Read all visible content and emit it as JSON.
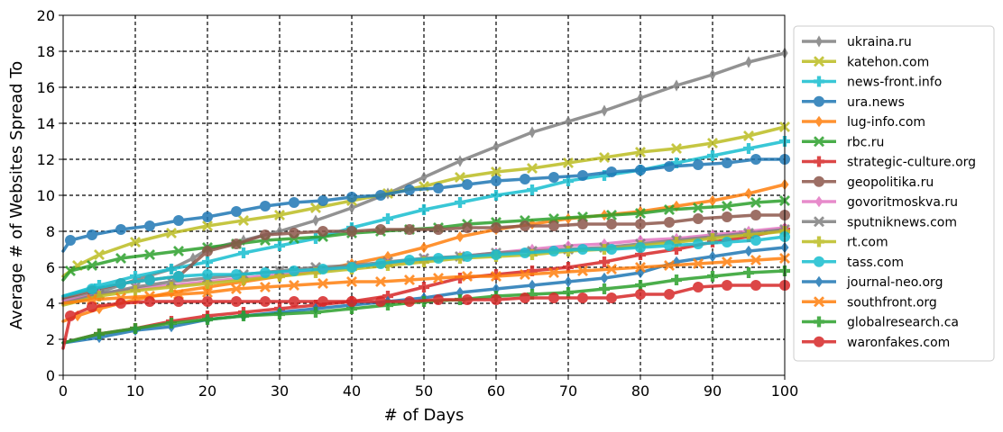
{
  "chart_data": {
    "type": "line",
    "xlabel": "# of Days",
    "ylabel": "Average # of Websites Spread To",
    "xlim": [
      0,
      100
    ],
    "ylim": [
      0,
      20
    ],
    "xticks": [
      0,
      10,
      20,
      30,
      40,
      50,
      60,
      70,
      80,
      90,
      100
    ],
    "yticks": [
      0,
      2,
      4,
      6,
      8,
      10,
      12,
      14,
      16,
      18,
      20
    ],
    "grid": true,
    "legend_position": "right",
    "series": [
      {
        "name": "ukraina.ru",
        "color": "#7f7f7f",
        "marker": "thin_diamond",
        "x": [
          0,
          5,
          10,
          15,
          18,
          20,
          25,
          30,
          35,
          40,
          45,
          50,
          55,
          60,
          65,
          70,
          75,
          80,
          85,
          90,
          95,
          100
        ],
        "y": [
          4.2,
          4.6,
          5.3,
          5.9,
          6.5,
          7.0,
          7.5,
          8.0,
          8.6,
          9.3,
          10.1,
          11.0,
          11.9,
          12.7,
          13.5,
          14.1,
          14.7,
          15.4,
          16.1,
          16.7,
          17.4,
          17.9
        ]
      },
      {
        "name": "katehon.com",
        "color": "#bcbd22",
        "marker": "X",
        "x": [
          0,
          2,
          5,
          10,
          15,
          20,
          25,
          30,
          35,
          40,
          45,
          50,
          55,
          60,
          65,
          70,
          75,
          80,
          85,
          90,
          95,
          100
        ],
        "y": [
          5.5,
          6.1,
          6.7,
          7.4,
          7.9,
          8.3,
          8.6,
          8.9,
          9.3,
          9.7,
          10.1,
          10.5,
          11.0,
          11.3,
          11.5,
          11.8,
          12.1,
          12.4,
          12.6,
          12.9,
          13.3,
          13.8
        ]
      },
      {
        "name": "news-front.info",
        "color": "#17becf",
        "marker": "P",
        "x": [
          0,
          5,
          10,
          15,
          20,
          25,
          30,
          35,
          40,
          45,
          50,
          55,
          60,
          65,
          70,
          75,
          80,
          85,
          90,
          95,
          100
        ],
        "y": [
          4.4,
          5.0,
          5.5,
          5.9,
          6.3,
          6.8,
          7.2,
          7.6,
          8.2,
          8.7,
          9.2,
          9.6,
          10.0,
          10.3,
          10.8,
          11.1,
          11.4,
          11.8,
          12.2,
          12.6,
          13.0
        ]
      },
      {
        "name": "ura.news",
        "color": "#1f77b4",
        "marker": "o",
        "x": [
          0,
          1,
          4,
          8,
          12,
          16,
          20,
          24,
          28,
          32,
          36,
          40,
          44,
          48,
          52,
          56,
          60,
          64,
          68,
          72,
          76,
          80,
          84,
          88,
          92,
          96,
          100
        ],
        "y": [
          6.9,
          7.5,
          7.8,
          8.1,
          8.3,
          8.6,
          8.8,
          9.1,
          9.4,
          9.6,
          9.7,
          9.9,
          10.0,
          10.3,
          10.4,
          10.6,
          10.8,
          10.9,
          11.0,
          11.1,
          11.3,
          11.4,
          11.6,
          11.7,
          11.8,
          12.0,
          12.0
        ]
      },
      {
        "name": "lug-info.com",
        "color": "#ff7f0e",
        "marker": "d",
        "x": [
          0,
          2,
          5,
          10,
          15,
          20,
          25,
          30,
          35,
          40,
          45,
          50,
          55,
          60,
          65,
          70,
          75,
          80,
          85,
          90,
          95,
          100
        ],
        "y": [
          3.0,
          3.3,
          3.7,
          4.2,
          4.6,
          4.9,
          5.2,
          5.5,
          5.8,
          6.2,
          6.6,
          7.1,
          7.7,
          8.1,
          8.4,
          8.7,
          8.9,
          9.1,
          9.4,
          9.7,
          10.1,
          10.6
        ]
      },
      {
        "name": "rbc.ru",
        "color": "#2ca02c",
        "marker": "X",
        "x": [
          0,
          1,
          4,
          8,
          12,
          16,
          20,
          24,
          28,
          32,
          36,
          40,
          44,
          48,
          52,
          56,
          60,
          64,
          68,
          72,
          76,
          80,
          84,
          88,
          92,
          96,
          100
        ],
        "y": [
          5.3,
          5.8,
          6.1,
          6.5,
          6.7,
          6.9,
          7.1,
          7.3,
          7.5,
          7.6,
          7.7,
          7.9,
          8.0,
          8.1,
          8.2,
          8.4,
          8.5,
          8.6,
          8.7,
          8.8,
          8.9,
          9.0,
          9.2,
          9.3,
          9.4,
          9.6,
          9.7
        ]
      },
      {
        "name": "strategic-culture.org",
        "color": "#d62728",
        "marker": "P",
        "x": [
          0,
          5,
          10,
          15,
          20,
          25,
          30,
          35,
          40,
          45,
          50,
          55,
          60,
          65,
          70,
          75,
          80,
          85,
          90,
          95,
          100
        ],
        "y": [
          1.8,
          2.3,
          2.6,
          3.0,
          3.3,
          3.5,
          3.7,
          3.9,
          4.1,
          4.4,
          4.9,
          5.4,
          5.6,
          5.8,
          6.0,
          6.3,
          6.7,
          7.0,
          7.4,
          7.7,
          8.1
        ]
      },
      {
        "name": "geopolitika.ru",
        "color": "#8c564b",
        "marker": "o",
        "x": [
          0,
          4,
          8,
          12,
          16,
          20,
          24,
          28,
          32,
          36,
          40,
          44,
          48,
          52,
          56,
          60,
          64,
          68,
          72,
          76,
          80,
          84,
          88,
          92,
          96,
          100
        ],
        "y": [
          4.3,
          4.7,
          5.1,
          5.3,
          5.5,
          6.9,
          7.3,
          7.8,
          7.9,
          8.0,
          8.0,
          8.1,
          8.1,
          8.1,
          8.2,
          8.2,
          8.3,
          8.3,
          8.4,
          8.4,
          8.4,
          8.5,
          8.7,
          8.8,
          8.9,
          8.9
        ]
      },
      {
        "name": "govoritmoskva.ru",
        "color": "#e377c2",
        "marker": "d",
        "x": [
          0,
          5,
          10,
          15,
          20,
          25,
          30,
          35,
          40,
          45,
          50,
          55,
          60,
          65,
          70,
          75,
          80,
          85,
          90,
          95,
          100
        ],
        "y": [
          4.1,
          4.5,
          4.8,
          5.0,
          5.2,
          5.4,
          5.6,
          5.8,
          6.0,
          6.2,
          6.4,
          6.6,
          6.8,
          7.0,
          7.2,
          7.3,
          7.5,
          7.6,
          7.8,
          8.0,
          8.2
        ]
      },
      {
        "name": "sputniknews.com",
        "color": "#7f7f7f",
        "marker": "X",
        "x": [
          0,
          5,
          10,
          15,
          20,
          25,
          30,
          35,
          40,
          45,
          50,
          55,
          60,
          65,
          70,
          75,
          80,
          85,
          90,
          95,
          100
        ],
        "y": [
          4.0,
          4.5,
          4.9,
          5.2,
          5.4,
          5.6,
          5.8,
          6.0,
          6.1,
          6.3,
          6.5,
          6.6,
          6.8,
          6.9,
          7.0,
          7.1,
          7.3,
          7.5,
          7.7,
          7.9,
          8.1
        ]
      },
      {
        "name": "rt.com",
        "color": "#bcbd22",
        "marker": "P",
        "x": [
          0,
          5,
          10,
          15,
          20,
          25,
          30,
          35,
          40,
          45,
          50,
          55,
          60,
          65,
          70,
          75,
          80,
          85,
          90,
          95,
          100
        ],
        "y": [
          3.9,
          4.4,
          4.7,
          4.9,
          5.1,
          5.3,
          5.5,
          5.7,
          5.9,
          6.1,
          6.3,
          6.5,
          6.6,
          6.7,
          6.9,
          7.0,
          7.2,
          7.4,
          7.6,
          7.8,
          8.0
        ]
      },
      {
        "name": "tass.com",
        "color": "#17becf",
        "marker": "o",
        "x": [
          0,
          4,
          8,
          12,
          16,
          20,
          24,
          28,
          32,
          36,
          40,
          44,
          48,
          52,
          56,
          60,
          64,
          68,
          72,
          76,
          80,
          84,
          88,
          92,
          96,
          100
        ],
        "y": [
          4.4,
          4.8,
          5.1,
          5.3,
          5.5,
          5.6,
          5.6,
          5.7,
          5.8,
          5.9,
          6.0,
          6.2,
          6.4,
          6.5,
          6.6,
          6.7,
          6.8,
          6.9,
          7.0,
          7.0,
          7.1,
          7.2,
          7.3,
          7.4,
          7.5,
          7.7
        ]
      },
      {
        "name": "journal-neo.org",
        "color": "#1f77b4",
        "marker": "d",
        "x": [
          0,
          5,
          10,
          15,
          20,
          25,
          30,
          35,
          40,
          45,
          50,
          55,
          60,
          65,
          70,
          75,
          80,
          85,
          90,
          95,
          100
        ],
        "y": [
          1.8,
          2.1,
          2.5,
          2.7,
          3.1,
          3.3,
          3.5,
          3.7,
          3.9,
          4.1,
          4.3,
          4.6,
          4.8,
          5.0,
          5.2,
          5.4,
          5.7,
          6.3,
          6.6,
          6.9,
          7.1
        ]
      },
      {
        "name": "southfront.org",
        "color": "#ff7f0e",
        "marker": "X",
        "x": [
          0,
          4,
          8,
          12,
          16,
          20,
          24,
          28,
          32,
          36,
          40,
          44,
          48,
          52,
          56,
          60,
          64,
          68,
          72,
          76,
          80,
          84,
          88,
          92,
          96,
          100
        ],
        "y": [
          4.0,
          4.2,
          4.3,
          4.4,
          4.5,
          4.6,
          4.8,
          4.9,
          5.0,
          5.1,
          5.2,
          5.2,
          5.3,
          5.4,
          5.5,
          5.5,
          5.6,
          5.7,
          5.8,
          5.9,
          6.0,
          6.1,
          6.2,
          6.3,
          6.4,
          6.5
        ]
      },
      {
        "name": "globalresearch.ca",
        "color": "#2ca02c",
        "marker": "P",
        "x": [
          0,
          5,
          10,
          15,
          20,
          25,
          30,
          35,
          40,
          45,
          50,
          55,
          60,
          65,
          70,
          75,
          80,
          85,
          90,
          95,
          100
        ],
        "y": [
          1.8,
          2.3,
          2.6,
          2.9,
          3.1,
          3.3,
          3.4,
          3.5,
          3.7,
          3.9,
          4.1,
          4.2,
          4.4,
          4.5,
          4.6,
          4.8,
          5.0,
          5.3,
          5.5,
          5.7,
          5.8
        ]
      },
      {
        "name": "waronfakes.com",
        "color": "#d62728",
        "marker": "o",
        "x": [
          0,
          1,
          4,
          8,
          12,
          16,
          20,
          24,
          28,
          32,
          36,
          40,
          44,
          48,
          52,
          56,
          60,
          64,
          68,
          72,
          76,
          80,
          84,
          88,
          92,
          96,
          100
        ],
        "y": [
          1.5,
          3.3,
          3.8,
          4.0,
          4.1,
          4.1,
          4.1,
          4.1,
          4.1,
          4.1,
          4.1,
          4.1,
          4.1,
          4.1,
          4.2,
          4.2,
          4.2,
          4.3,
          4.3,
          4.3,
          4.3,
          4.5,
          4.5,
          4.9,
          5.0,
          5.0,
          5.0
        ]
      }
    ]
  }
}
